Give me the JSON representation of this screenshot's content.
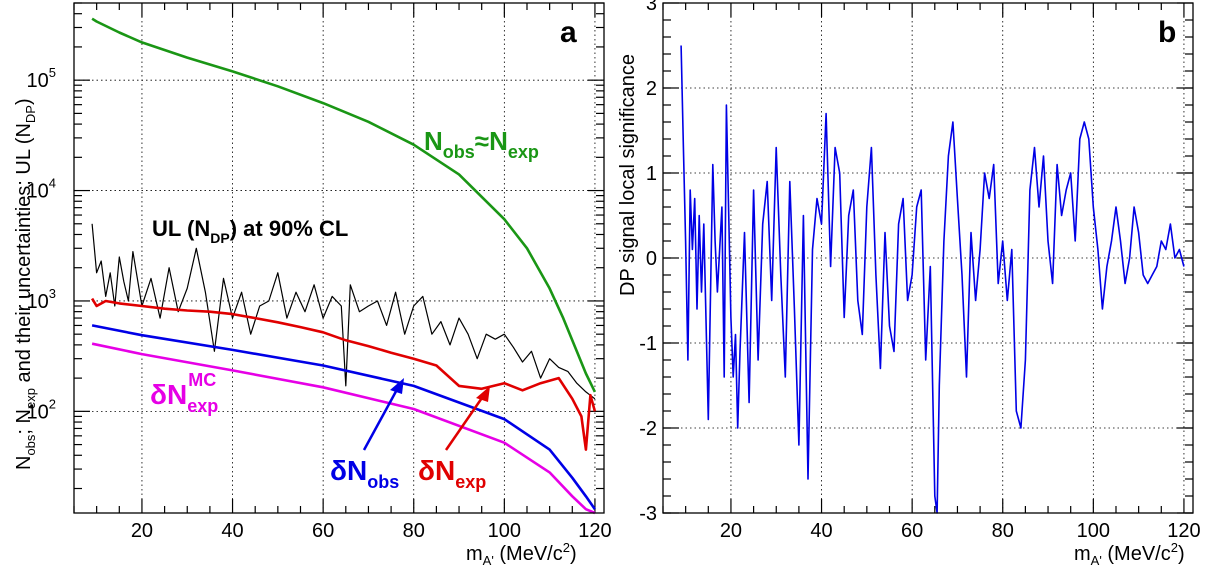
{
  "chart_data": [
    {
      "panel": "a",
      "type": "line",
      "xlabel": "m_A' (MeV/c^2)",
      "ylabel": "N_obs, N_exp and their uncertainties; UL (N_DP)",
      "ylog": true,
      "xlim": [
        5,
        122
      ],
      "ylim": [
        12,
        500000
      ],
      "xticks": [
        20,
        40,
        60,
        80,
        100,
        120
      ],
      "yticks_major": [
        100,
        1000,
        10000,
        100000
      ],
      "grid": true,
      "annotations": [
        "UL (N_DP) at 90% CL",
        "N_obs≈N_exp",
        "δN_exp^MC",
        "δN_obs",
        "δN_exp"
      ],
      "series": [
        {
          "name": "N_obs≈N_exp",
          "color": "#1a9615",
          "x": [
            9,
            10,
            15,
            20,
            30,
            40,
            50,
            60,
            70,
            80,
            90,
            100,
            105,
            110,
            113,
            116,
            118,
            120
          ],
          "y": [
            360000,
            340000,
            270000,
            220000,
            160000,
            120000,
            88000,
            62000,
            42000,
            26000,
            14000,
            5500,
            3000,
            1300,
            700,
            350,
            220,
            150
          ]
        },
        {
          "name": "UL (N_DP) at 90% CL",
          "color": "#000000",
          "x": [
            9,
            10,
            11,
            12,
            13,
            14,
            15,
            16,
            17,
            18,
            20,
            22,
            24,
            26,
            28,
            30,
            32,
            34,
            36,
            38,
            40,
            42,
            44,
            46,
            48,
            50,
            52,
            54,
            56,
            58,
            60,
            62,
            64,
            65,
            66,
            68,
            70,
            72,
            74,
            76,
            78,
            80,
            82,
            84,
            86,
            88,
            90,
            92,
            94,
            96,
            98,
            100,
            102,
            104,
            106,
            108,
            110,
            112,
            114,
            116,
            118,
            120
          ],
          "y": [
            5000,
            1800,
            2300,
            1100,
            1800,
            900,
            2500,
            1500,
            1000,
            2800,
            900,
            1600,
            700,
            2000,
            800,
            1300,
            3000,
            1200,
            350,
            1600,
            700,
            1200,
            500,
            900,
            1000,
            1800,
            700,
            1200,
            800,
            1400,
            700,
            1100,
            900,
            170,
            1400,
            800,
            900,
            1000,
            600,
            1200,
            500,
            900,
            1100,
            500,
            650,
            400,
            700,
            500,
            300,
            500,
            450,
            500,
            380,
            280,
            350,
            200,
            300,
            250,
            230,
            180,
            150,
            130
          ]
        },
        {
          "name": "δN_exp",
          "color": "#e00000",
          "x": [
            9,
            10,
            12,
            15,
            20,
            25,
            30,
            35,
            40,
            45,
            50,
            55,
            60,
            65,
            70,
            75,
            80,
            85,
            90,
            95,
            100,
            104,
            108,
            112,
            115,
            117,
            118,
            119,
            120
          ],
          "y": [
            1050,
            900,
            1000,
            950,
            900,
            850,
            820,
            800,
            760,
            700,
            640,
            580,
            520,
            440,
            390,
            340,
            300,
            260,
            170,
            160,
            180,
            155,
            180,
            200,
            130,
            90,
            45,
            140,
            100
          ]
        },
        {
          "name": "δN_obs",
          "color": "#0000e6",
          "x": [
            9,
            20,
            40,
            60,
            80,
            100,
            110,
            115,
            118,
            120
          ],
          "y": [
            600,
            490,
            360,
            260,
            170,
            85,
            45,
            25,
            17,
            13
          ]
        },
        {
          "name": "δN_exp^MC",
          "color": "#e600e6",
          "x": [
            9,
            20,
            40,
            60,
            80,
            100,
            110,
            115,
            118,
            120
          ],
          "y": [
            410,
            330,
            235,
            165,
            105,
            52,
            28,
            17,
            13,
            11
          ]
        }
      ]
    },
    {
      "panel": "b",
      "type": "line",
      "xlabel": "m_A' (MeV/c^2)",
      "ylabel": "DP signal local significance",
      "xlim": [
        5,
        122
      ],
      "ylim": [
        -3,
        3
      ],
      "xticks": [
        20,
        40,
        60,
        80,
        100,
        120
      ],
      "yticks": [
        -3,
        -2,
        -1,
        0,
        1,
        2,
        3
      ],
      "grid": true,
      "series": [
        {
          "name": "",
          "color": "#0000e6",
          "x": [
            9,
            9.5,
            10,
            10.5,
            11,
            11.5,
            12,
            12.5,
            13,
            13.5,
            14,
            15,
            16,
            16.5,
            17,
            18,
            18.5,
            19,
            20,
            20.5,
            21,
            21.5,
            22,
            23,
            24,
            25,
            26,
            27,
            28,
            29,
            30,
            31,
            32,
            33,
            34,
            35,
            36,
            37,
            38,
            39,
            40,
            41,
            42,
            43,
            44,
            45,
            46,
            47,
            48,
            49,
            50,
            51,
            52,
            53,
            54,
            55,
            56,
            57,
            58,
            59,
            60,
            61,
            62,
            63,
            64,
            65,
            65.5,
            66,
            67,
            68,
            69,
            70,
            71,
            72,
            73,
            74,
            75,
            76,
            77,
            78,
            79,
            80,
            81,
            82,
            83,
            84,
            85,
            86,
            87,
            88,
            89,
            90,
            91,
            92,
            93,
            94,
            95,
            96,
            97,
            98,
            99,
            100,
            101,
            102,
            103,
            104,
            105,
            106,
            107,
            108,
            109,
            110,
            111,
            112,
            113,
            114,
            115,
            116,
            117,
            118,
            119,
            120
          ],
          "y": [
            2.5,
            1.3,
            0.2,
            -1.2,
            0.8,
            0.1,
            0.7,
            -0.6,
            0.5,
            -0.4,
            0.4,
            -1.9,
            1.1,
            0.2,
            -0.4,
            0.6,
            -1.4,
            1.8,
            -0.7,
            -1.4,
            -0.9,
            -2.0,
            -1.1,
            0.3,
            -1.7,
            0.8,
            -1.2,
            0.4,
            0.9,
            -0.5,
            1.3,
            -0.2,
            -1.4,
            0.9,
            -0.6,
            -2.2,
            0.5,
            -2.6,
            0.1,
            0.7,
            0.4,
            1.7,
            -0.1,
            1.3,
            1.0,
            -0.7,
            0.5,
            0.8,
            -0.5,
            -0.9,
            0.6,
            1.3,
            -0.2,
            -1.3,
            0.3,
            -0.8,
            -1.1,
            0.4,
            0.7,
            -0.5,
            -0.2,
            0.6,
            0.8,
            -1.2,
            -0.1,
            -2.8,
            -3.0,
            -1.5,
            0.2,
            1.2,
            1.6,
            0.7,
            -0.2,
            -1.4,
            0.3,
            -0.5,
            0.1,
            1.0,
            0.7,
            1.1,
            -0.3,
            0.2,
            -0.5,
            0.1,
            -1.8,
            -2.0,
            -1.2,
            0.8,
            1.3,
            0.6,
            1.2,
            0.2,
            -0.3,
            1.1,
            0.5,
            0.8,
            1.0,
            0.2,
            1.4,
            1.6,
            1.4,
            0.6,
            0.1,
            -0.6,
            -0.1,
            0.2,
            0.6,
            0.2,
            -0.3,
            0.0,
            0.6,
            0.3,
            -0.2,
            -0.3,
            -0.2,
            -0.1,
            0.2,
            0.1,
            0.4,
            0.0,
            0.1,
            -0.1
          ]
        }
      ]
    }
  ],
  "panels": {
    "a": {
      "label": "a",
      "ytick_labels": [
        "10^2",
        "10^3",
        "10^4",
        "10^5"
      ]
    },
    "b": {
      "label": "b"
    }
  }
}
